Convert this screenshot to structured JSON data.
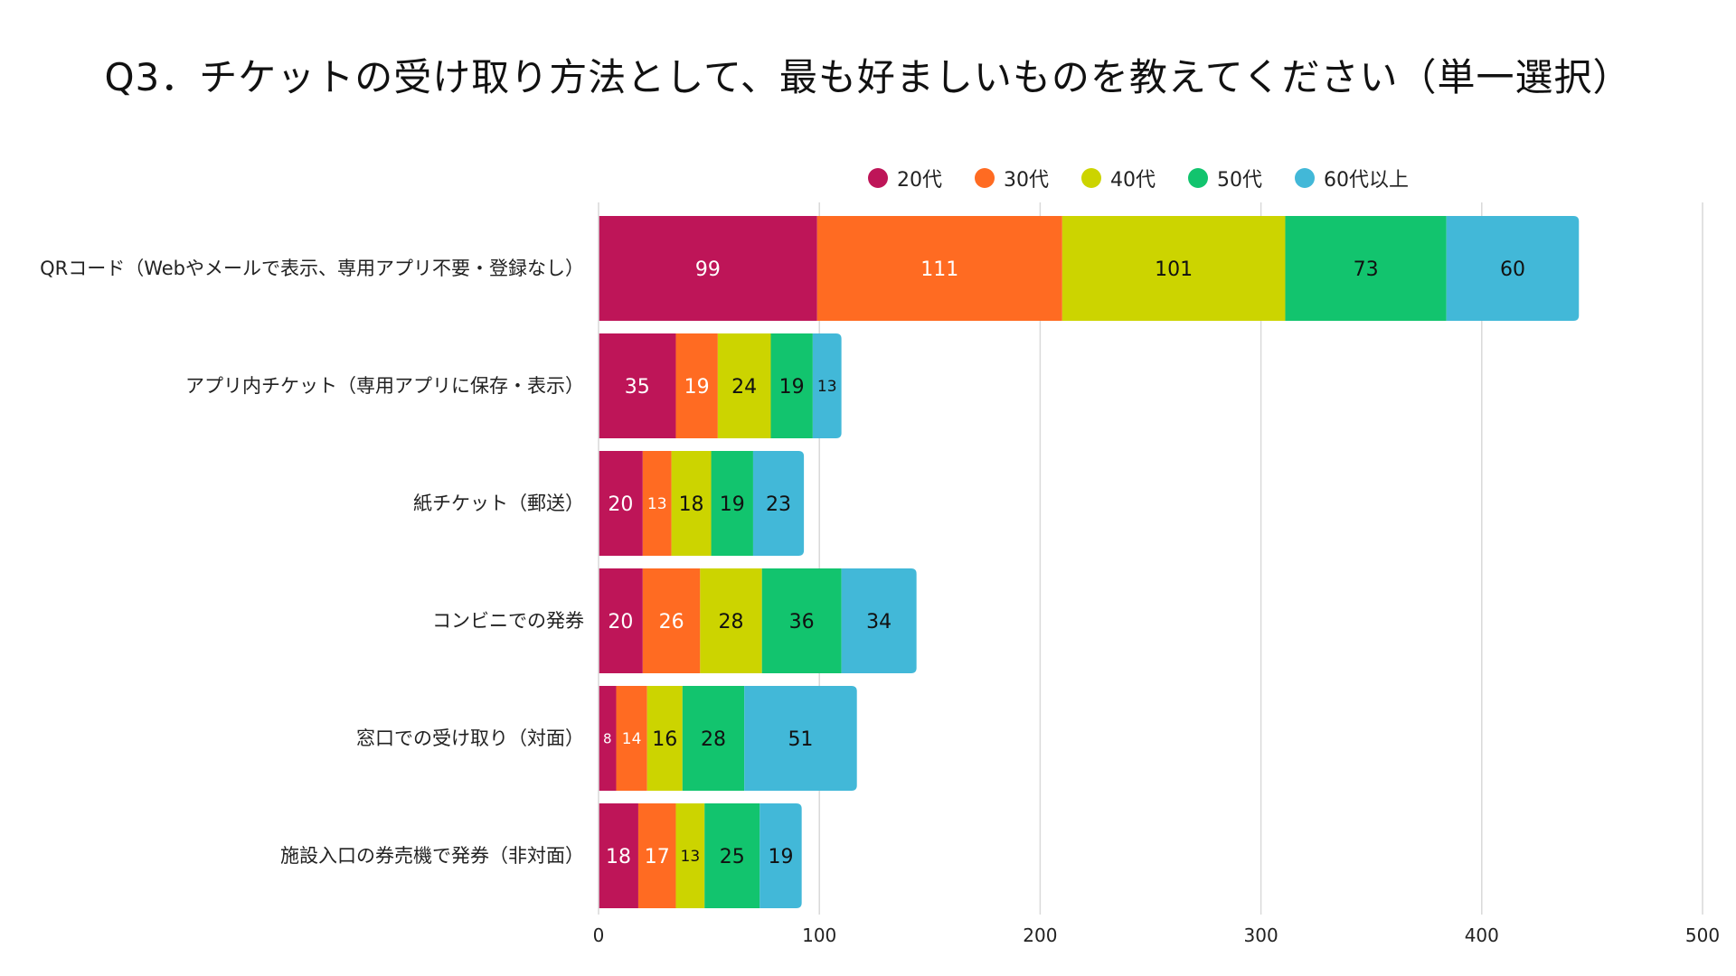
{
  "chart_data": {
    "type": "bar",
    "orientation": "horizontal",
    "stacked": true,
    "title": "Q3．チケットの受け取り方法として、最も好ましいものを教えてください（単一選択）",
    "categories": [
      "QRコード（Webやメールで表示、専用アプリ不要・登録なし）",
      "アプリ内チケット（専用アプリに保存・表示）",
      "紙チケット（郵送）",
      "コンビニでの発券",
      "窓口での受け取り（対面）",
      "施設入口の券売機で発券（非対面）"
    ],
    "series": [
      {
        "name": "20代",
        "color": "#BE1558",
        "label_color": "#ffffff",
        "values": [
          99,
          35,
          20,
          20,
          8,
          18
        ]
      },
      {
        "name": "30代",
        "color": "#FF6B22",
        "label_color": "#ffffff",
        "values": [
          111,
          19,
          13,
          26,
          14,
          17
        ]
      },
      {
        "name": "40代",
        "color": "#CCD400",
        "label_color": "#111111",
        "values": [
          101,
          24,
          18,
          28,
          16,
          13
        ]
      },
      {
        "name": "50代",
        "color": "#12C46E",
        "label_color": "#111111",
        "values": [
          73,
          19,
          19,
          36,
          28,
          25
        ]
      },
      {
        "name": "60代以上",
        "color": "#42B8D8",
        "label_color": "#111111",
        "values": [
          60,
          13,
          23,
          34,
          51,
          19
        ]
      }
    ],
    "xlim": [
      0,
      500
    ],
    "xticks": [
      0,
      100,
      200,
      300,
      400,
      500
    ],
    "legend_position": "top",
    "grid": true
  }
}
